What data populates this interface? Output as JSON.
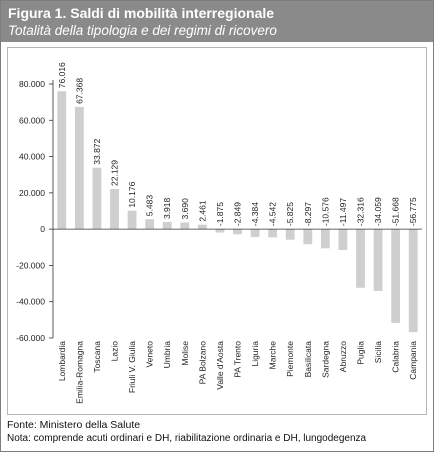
{
  "figure": {
    "title": "Figura 1. Saldi di mobilità interregionale",
    "subtitle": "Totalità della tipologia e dei regimi di ricovero",
    "source": "Fonte: Ministero della Salute",
    "note": "Nota: comprende acuti ordinari e DH, riabilitazione ordinaria e DH, lungodegenza"
  },
  "colors": {
    "title_band": "#8a8a8a",
    "bars": "#cfcfcf",
    "axis": "#333333"
  },
  "chart_data": {
    "type": "bar",
    "title": "",
    "xlabel": "",
    "ylabel": "",
    "ylim": [
      -60000,
      80000
    ],
    "yticks": [
      80000,
      60000,
      40000,
      20000,
      0,
      -20000,
      -40000,
      -60000
    ],
    "ytick_labels": [
      "80.000",
      "60.000",
      "40.000",
      "20.000",
      "0",
      "-20.000",
      "-40.000",
      "-60.000"
    ],
    "grid": false,
    "categories": [
      "Lombardia",
      "Emilia-Romagna",
      "Toscana",
      "Lazio",
      "Friuli V. Giulia",
      "Veneto",
      "Umbria",
      "Molise",
      "PA Bolzano",
      "Valle d'Aosta",
      "PA Trento",
      "Liguria",
      "Marche",
      "Piemonte",
      "Basilicata",
      "Sardegna",
      "Abruzzo",
      "Puglia",
      "Sicilia",
      "Calabria",
      "Campania"
    ],
    "values": [
      76016,
      67368,
      33872,
      22129,
      10176,
      5483,
      3918,
      3690,
      2461,
      -1875,
      -2849,
      -4384,
      -4542,
      -5825,
      -8297,
      -10576,
      -11497,
      -32316,
      -34059,
      -51668,
      -56775
    ],
    "value_labels": [
      "76.016",
      "67.368",
      "33.872",
      "22.129",
      "10.176",
      "5.483",
      "3.918",
      "3.690",
      "2.461",
      "-1.875",
      "-2.849",
      "-4.384",
      "-4.542",
      "-5.825",
      "-8.297",
      "-10.576",
      "-11.497",
      "-32.316",
      "-34.059",
      "-51.668",
      "-56.775"
    ]
  }
}
